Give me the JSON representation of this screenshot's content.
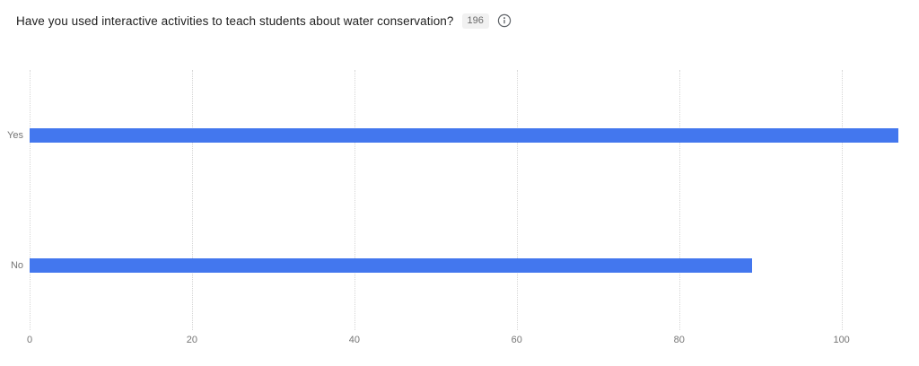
{
  "header": {
    "title": "Have you used interactive activities to teach students about water conservation?",
    "response_count": "196"
  },
  "chart_data": {
    "type": "bar",
    "orientation": "horizontal",
    "title": "Have you used interactive activities to teach students about water conservation?",
    "categories": [
      "Yes",
      "No"
    ],
    "values": [
      107,
      89
    ],
    "total_responses": 196,
    "xlabel": "",
    "ylabel": "",
    "xlim": [
      0,
      108
    ],
    "x_ticks": [
      0,
      20,
      40,
      60,
      80,
      100
    ],
    "grid": "vertical dotted gridlines at x ticks",
    "legend": "none",
    "bar_color": "#4377EE"
  },
  "colors": {
    "bar": "#4377EE",
    "gridline": "#d6d6d6",
    "axis_text": "#757575",
    "title_text": "#212121",
    "badge_bg": "#f1f1f1",
    "badge_text": "#6b6b6b",
    "icon_stroke": "#5f6368"
  }
}
